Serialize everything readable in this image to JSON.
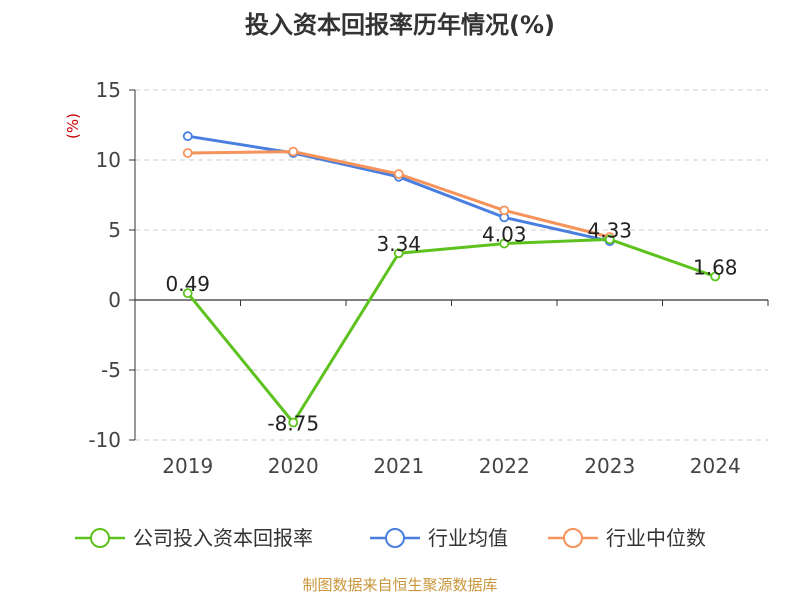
{
  "chart_data": {
    "type": "line",
    "title": "投入资本回报率历年情况(%)",
    "ylabel": "(%)",
    "xlabel": "",
    "categories": [
      "2019",
      "2020",
      "2021",
      "2022",
      "2023",
      "2024"
    ],
    "ylim": [
      -10,
      15
    ],
    "yticks": [
      "15",
      "10",
      "5",
      "0",
      "-5",
      "-10"
    ],
    "grid": true,
    "legend_position": "bottom",
    "series": [
      {
        "name": "公司投入资本回报率",
        "color": "#5dc21e",
        "values": [
          0.49,
          -8.75,
          3.34,
          4.03,
          4.33,
          1.68
        ],
        "labels": [
          "0.49",
          "-8.75",
          "3.34",
          "4.03",
          "4.33",
          "1.68"
        ]
      },
      {
        "name": "行业均值",
        "color": "#4a7fe0",
        "values": [
          11.7,
          10.5,
          8.8,
          5.9,
          4.2,
          null
        ]
      },
      {
        "name": "行业中位数",
        "color": "#f5935b",
        "values": [
          10.5,
          10.6,
          9.0,
          6.4,
          4.5,
          null
        ]
      }
    ]
  },
  "source": "制图数据来自恒生聚源数据库"
}
